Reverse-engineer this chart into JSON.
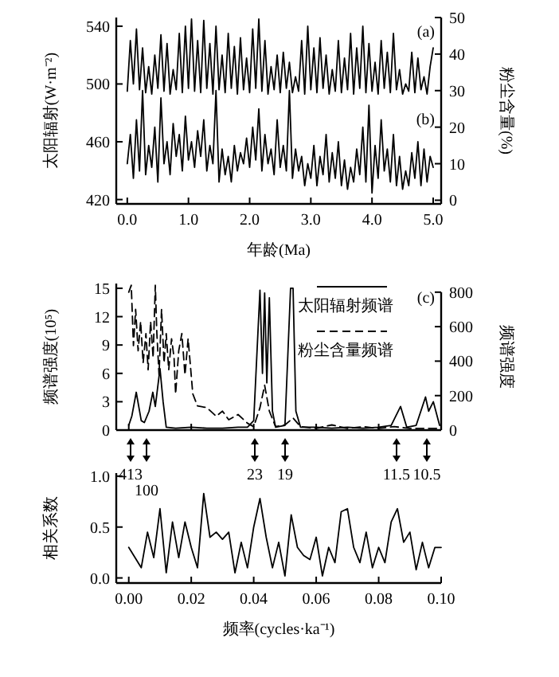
{
  "chart_data": [
    {
      "type": "line",
      "xlabel": "年龄(Ma)",
      "ylabel": "太阳辐射(W·m⁻²)",
      "y2label": "粉尘含量(%)",
      "annotations": [
        "(a)",
        "(b)"
      ],
      "xlim": [
        -0.18,
        5.13
      ],
      "xticks": [
        {
          "value": 0,
          "label": "0.0"
        },
        {
          "value": 1,
          "label": "1.0"
        },
        {
          "value": 2,
          "label": "2.0"
        },
        {
          "value": 3,
          "label": "3.0"
        },
        {
          "value": 4,
          "label": "4.0"
        },
        {
          "value": 5,
          "label": "5.0"
        }
      ],
      "ylim": [
        417,
        546
      ],
      "yticks": [
        420,
        460,
        500,
        540
      ],
      "y2lim": [
        -1,
        50
      ],
      "y2ticks": [
        0,
        10,
        20,
        30,
        40,
        50
      ],
      "series": [
        {
          "color": "#000000",
          "x": [
            0,
            0.05,
            0.1,
            0.15,
            0.2,
            0.25,
            0.3,
            0.35,
            0.4,
            0.45,
            0.5,
            0.55,
            0.6,
            0.65,
            0.7,
            0.75,
            0.8,
            0.85,
            0.9,
            0.95,
            1.0,
            1.05,
            1.1,
            1.15,
            1.2,
            1.25,
            1.3,
            1.35,
            1.4,
            1.45,
            1.5,
            1.55,
            1.6,
            1.65,
            1.7,
            1.75,
            1.8,
            1.85,
            1.9,
            1.95,
            2.0,
            2.05,
            2.1,
            2.15,
            2.2,
            2.25,
            2.3,
            2.35,
            2.4,
            2.45,
            2.5,
            2.55,
            2.6,
            2.65,
            2.7,
            2.75,
            2.8,
            2.85,
            2.9,
            2.95,
            3.0,
            3.05,
            3.1,
            3.15,
            3.2,
            3.25,
            3.3,
            3.35,
            3.4,
            3.45,
            3.5,
            3.55,
            3.6,
            3.65,
            3.7,
            3.75,
            3.8,
            3.85,
            3.9,
            3.95,
            4.0,
            4.05,
            4.1,
            4.15,
            4.2,
            4.25,
            4.3,
            4.35,
            4.4,
            4.45,
            4.5,
            4.55,
            4.6,
            4.65,
            4.7,
            4.75,
            4.8,
            4.85,
            4.9,
            4.95,
            5.0
          ],
          "values": [
            495,
            530,
            500,
            538,
            496,
            525,
            494,
            512,
            493,
            520,
            497,
            534,
            495,
            528,
            493,
            510,
            496,
            535,
            494,
            540,
            497,
            545,
            495,
            530,
            494,
            544,
            497,
            528,
            493,
            540,
            496,
            520,
            494,
            535,
            497,
            526,
            493,
            532,
            496,
            518,
            494,
            538,
            497,
            545,
            495,
            530,
            493,
            512,
            496,
            520,
            494,
            522,
            497,
            515,
            494,
            505,
            495,
            530,
            493,
            540,
            496,
            525,
            494,
            532,
            497,
            520,
            493,
            510,
            495,
            530,
            494,
            518,
            496,
            535,
            493,
            525,
            497,
            540,
            494,
            528,
            495,
            515,
            493,
            530,
            497,
            522,
            494,
            535,
            496,
            510,
            493,
            500,
            495,
            522,
            494,
            518,
            496,
            505,
            493,
            512,
            525
          ]
        },
        {
          "color": "#000000",
          "axis": "y2",
          "x": [
            0,
            0.05,
            0.1,
            0.15,
            0.2,
            0.25,
            0.3,
            0.35,
            0.4,
            0.45,
            0.5,
            0.55,
            0.6,
            0.65,
            0.7,
            0.75,
            0.8,
            0.85,
            0.9,
            0.95,
            1.0,
            1.05,
            1.1,
            1.15,
            1.2,
            1.25,
            1.3,
            1.35,
            1.4,
            1.45,
            1.5,
            1.55,
            1.6,
            1.65,
            1.7,
            1.75,
            1.8,
            1.85,
            1.9,
            1.95,
            2.0,
            2.05,
            2.1,
            2.15,
            2.2,
            2.25,
            2.3,
            2.35,
            2.4,
            2.45,
            2.5,
            2.55,
            2.6,
            2.65,
            2.7,
            2.75,
            2.8,
            2.85,
            2.9,
            2.95,
            3.0,
            3.05,
            3.1,
            3.15,
            3.2,
            3.25,
            3.3,
            3.35,
            3.4,
            3.45,
            3.5,
            3.55,
            3.6,
            3.65,
            3.7,
            3.75,
            3.8,
            3.85,
            3.9,
            3.95,
            4.0,
            4.05,
            4.1,
            4.15,
            4.2,
            4.25,
            4.3,
            4.35,
            4.4,
            4.45,
            4.5,
            4.55,
            4.6,
            4.65,
            4.7,
            4.75,
            4.8,
            4.85,
            4.9,
            4.95,
            5.0
          ],
          "values": [
            10,
            18,
            6,
            22,
            8,
            30,
            7,
            15,
            9,
            20,
            5,
            28,
            10,
            16,
            7,
            21,
            12,
            18,
            8,
            23,
            11,
            16,
            9,
            19,
            12,
            22,
            8,
            15,
            10,
            30,
            5,
            14,
            7,
            12,
            5,
            15,
            8,
            13,
            10,
            17,
            9,
            20,
            11,
            25,
            8,
            18,
            10,
            14,
            7,
            22,
            9,
            15,
            8,
            30,
            6,
            14,
            8,
            12,
            4,
            10,
            6,
            15,
            4,
            12,
            7,
            18,
            5,
            13,
            6,
            16,
            4,
            11,
            3,
            9,
            5,
            14,
            7,
            20,
            5,
            26,
            2,
            15,
            6,
            22,
            8,
            14,
            5,
            18,
            4,
            12,
            3,
            8,
            4,
            13,
            6,
            16,
            4,
            14,
            5,
            12,
            9
          ]
        }
      ]
    },
    {
      "type": "line",
      "ylabel": "频谱强度(10⁵)",
      "y2label": "频谱强度",
      "annotations": [
        "(c)",
        "413",
        "100",
        "23",
        "19",
        "11.5",
        "10.5"
      ],
      "xlim": [
        -0.004,
        0.1
      ],
      "xticks": [
        {
          "value": 0,
          "label": null
        },
        {
          "value": 0.02,
          "label": null
        },
        {
          "value": 0.04,
          "label": null
        },
        {
          "value": 0.06,
          "label": null
        },
        {
          "value": 0.08,
          "label": null
        },
        {
          "value": 0.1,
          "label": null
        }
      ],
      "ylim": [
        0,
        15.5
      ],
      "yticks": [
        0,
        3,
        6,
        9,
        12,
        15
      ],
      "y2lim": [
        0,
        850
      ],
      "y2ticks": [
        0,
        200,
        400,
        600,
        800
      ],
      "tick_labels": "y",
      "legend": "top right",
      "series": [
        {
          "name": "太阳辐射频谱",
          "color": "#000000",
          "line_style": "solid",
          "x": [
            0,
            0.001,
            0.0024,
            0.004,
            0.005,
            0.0065,
            0.0077,
            0.0085,
            0.01,
            0.011,
            0.012,
            0.015,
            0.02,
            0.025,
            0.03,
            0.035,
            0.038,
            0.04,
            0.042,
            0.0428,
            0.0435,
            0.0442,
            0.045,
            0.046,
            0.047,
            0.05,
            0.0518,
            0.0526,
            0.0535,
            0.055,
            0.06,
            0.065,
            0.07,
            0.075,
            0.08,
            0.084,
            0.087,
            0.089,
            0.092,
            0.095,
            0.096,
            0.0975,
            0.0995
          ],
          "values": [
            0.5,
            1.5,
            4,
            1,
            0.8,
            2,
            4,
            2.5,
            6.5,
            3,
            0.3,
            0.2,
            0.3,
            0.2,
            0.2,
            0.3,
            0.3,
            1,
            14.8,
            6,
            14.5,
            5,
            14,
            2,
            0.3,
            0.5,
            15,
            15,
            2,
            0.3,
            0.3,
            0.2,
            0.3,
            0.2,
            0.3,
            0.5,
            2.5,
            0.3,
            0.5,
            3.5,
            2,
            3,
            0.5
          ]
        },
        {
          "name": "粉尘含量频谱",
          "color": "#000000",
          "line_style": "dashed",
          "axis": "y2",
          "x": [
            0,
            0.0008,
            0.0015,
            0.0022,
            0.003,
            0.0038,
            0.0046,
            0.0055,
            0.0062,
            0.007,
            0.0078,
            0.0085,
            0.009,
            0.0097,
            0.0105,
            0.0113,
            0.012,
            0.0128,
            0.0137,
            0.0145,
            0.015,
            0.016,
            0.017,
            0.018,
            0.019,
            0.0205,
            0.022,
            0.025,
            0.028,
            0.03,
            0.032,
            0.035,
            0.038,
            0.04,
            0.042,
            0.0435,
            0.045,
            0.047,
            0.05,
            0.0526,
            0.055,
            0.06,
            0.065,
            0.07,
            0.075,
            0.08,
            0.085,
            0.09,
            0.095,
            0.0995
          ],
          "values": [
            800,
            840,
            490,
            700,
            460,
            630,
            390,
            560,
            350,
            630,
            420,
            840,
            560,
            320,
            700,
            390,
            560,
            350,
            530,
            420,
            210,
            460,
            560,
            320,
            530,
            210,
            140,
            130,
            80,
            110,
            60,
            90,
            40,
            20,
            130,
            260,
            110,
            20,
            30,
            70,
            20,
            10,
            30,
            10,
            20,
            10,
            20,
            10,
            10,
            10
          ]
        }
      ]
    },
    {
      "type": "line",
      "xlabel": "频率(cycles·ka⁻¹)",
      "ylabel": "相关系数",
      "xlim": [
        -0.004,
        0.1
      ],
      "xticks": [
        {
          "value": 0,
          "label": "0.00"
        },
        {
          "value": 0.02,
          "label": "0.02"
        },
        {
          "value": 0.04,
          "label": "0.04"
        },
        {
          "value": 0.06,
          "label": "0.06"
        },
        {
          "value": 0.08,
          "label": "0.08"
        },
        {
          "value": 0.1,
          "label": "0.10"
        }
      ],
      "ylim": [
        -0.05,
        1.03
      ],
      "yticks": [
        {
          "value": 0,
          "label": "0.0"
        },
        {
          "value": 0.5,
          "label": "0.5"
        },
        {
          "value": 1,
          "label": "1.0"
        }
      ],
      "series": [
        {
          "color": "#000000",
          "x": [
            0,
            0.002,
            0.004,
            0.006,
            0.008,
            0.01,
            0.012,
            0.014,
            0.016,
            0.018,
            0.02,
            0.022,
            0.024,
            0.026,
            0.028,
            0.03,
            0.032,
            0.034,
            0.036,
            0.038,
            0.04,
            0.042,
            0.044,
            0.046,
            0.048,
            0.05,
            0.052,
            0.054,
            0.056,
            0.058,
            0.06,
            0.062,
            0.064,
            0.066,
            0.068,
            0.07,
            0.072,
            0.074,
            0.076,
            0.078,
            0.08,
            0.082,
            0.084,
            0.086,
            0.088,
            0.09,
            0.092,
            0.094,
            0.096,
            0.098,
            0.1
          ],
          "values": [
            0.3,
            0.2,
            0.1,
            0.45,
            0.2,
            0.68,
            0.05,
            0.55,
            0.2,
            0.55,
            0.3,
            0.1,
            0.83,
            0.4,
            0.45,
            0.38,
            0.45,
            0.05,
            0.35,
            0.1,
            0.5,
            0.78,
            0.4,
            0.1,
            0.35,
            0.02,
            0.62,
            0.3,
            0.22,
            0.18,
            0.4,
            0.02,
            0.3,
            0.15,
            0.65,
            0.68,
            0.3,
            0.15,
            0.45,
            0.1,
            0.3,
            0.15,
            0.55,
            0.68,
            0.35,
            0.45,
            0.08,
            0.35,
            0.1,
            0.3,
            0.3
          ]
        }
      ]
    }
  ]
}
